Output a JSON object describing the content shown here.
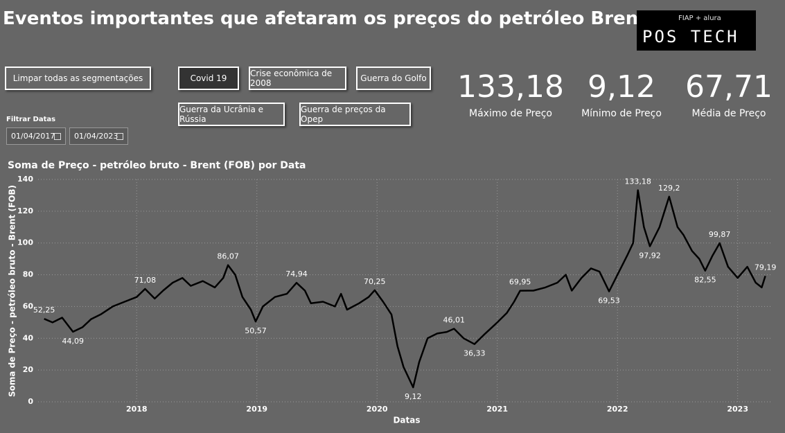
{
  "header": {
    "title": "Eventos importantes que afetaram os preços do petróleo Brent",
    "logo_top": "FIAP + alura",
    "logo_main": "POS TECH"
  },
  "slicers": {
    "clear": "Limpar todas as segmentações",
    "buttons": [
      "Covid 19",
      "Crise econômica de 2008",
      "Guerra do Golfo",
      "Guerra da Ucrânia e Rússia",
      "Guerra de preços da Opep"
    ],
    "date_label": "Filtrar Datas",
    "date_start": "01/04/2017",
    "date_end": "01/04/2023"
  },
  "kpis": [
    {
      "value": "133,18",
      "label": "Máximo de Preço"
    },
    {
      "value": "9,12",
      "label": "Mínimo de Preço"
    },
    {
      "value": "67,71",
      "label": "Média de Preço"
    }
  ],
  "chart_data": {
    "type": "line",
    "title": "Soma de Preço - petróleo bruto - Brent (FOB) por Data",
    "x_label": "Datas",
    "y_label": "Soma de Preço - petróleo bruto - Brent (FOB)",
    "x": [
      2017.23,
      2017.3,
      2017.38,
      2017.47,
      2017.55,
      2017.62,
      2017.7,
      2017.8,
      2017.9,
      2018.0,
      2018.07,
      2018.15,
      2018.22,
      2018.3,
      2018.38,
      2018.45,
      2018.55,
      2018.65,
      2018.72,
      2018.76,
      2018.82,
      2018.88,
      2018.95,
      2018.99,
      2019.05,
      2019.15,
      2019.25,
      2019.33,
      2019.4,
      2019.45,
      2019.55,
      2019.65,
      2019.7,
      2019.75,
      2019.85,
      2019.93,
      2019.98,
      2020.05,
      2020.12,
      2020.17,
      2020.22,
      2020.3,
      2020.35,
      2020.42,
      2020.5,
      2020.58,
      2020.64,
      2020.72,
      2020.81,
      2020.9,
      2021.0,
      2021.08,
      2021.14,
      2021.19,
      2021.3,
      2021.4,
      2021.5,
      2021.57,
      2021.62,
      2021.7,
      2021.78,
      2021.85,
      2021.93,
      2022.0,
      2022.08,
      2022.13,
      2022.17,
      2022.22,
      2022.27,
      2022.35,
      2022.43,
      2022.5,
      2022.55,
      2022.62,
      2022.68,
      2022.73,
      2022.79,
      2022.85,
      2022.92,
      2023.0,
      2023.08,
      2023.15,
      2023.2,
      2023.23
    ],
    "series": [
      {
        "name": "Preço",
        "color": "#000000",
        "values": [
          52.25,
          50,
          53,
          44.09,
          47,
          52,
          55,
          60,
          63,
          66,
          71.08,
          65,
          70,
          75,
          78,
          73,
          76,
          72,
          78,
          86.07,
          80,
          66,
          58,
          50.57,
          60,
          66,
          68,
          74.94,
          70,
          62,
          63,
          60,
          68,
          58,
          62,
          66,
          70.25,
          63,
          55,
          35,
          22,
          9.12,
          25,
          40,
          43,
          44,
          46.01,
          40,
          36.33,
          43,
          50,
          56,
          63,
          69.95,
          70,
          72,
          75,
          80,
          70,
          78,
          84,
          82,
          69.53,
          80,
          92,
          100,
          133.18,
          110,
          97.92,
          110,
          129.2,
          110,
          105,
          95,
          90,
          82.55,
          92,
          99.87,
          85,
          78,
          85,
          75,
          72,
          79.19
        ],
        "value_labels": [
          "52,25",
          null,
          null,
          "44,09",
          null,
          null,
          null,
          null,
          null,
          null,
          "71,08",
          null,
          null,
          null,
          null,
          null,
          null,
          null,
          null,
          "86,07",
          null,
          null,
          null,
          "50,57",
          null,
          null,
          null,
          "74,94",
          null,
          null,
          null,
          null,
          null,
          null,
          null,
          null,
          "70,25",
          null,
          null,
          null,
          null,
          "9,12",
          null,
          null,
          null,
          null,
          "46,01",
          null,
          "36,33",
          null,
          null,
          null,
          null,
          "69,95",
          null,
          null,
          null,
          null,
          null,
          null,
          null,
          null,
          "69,53",
          null,
          null,
          null,
          "133,18",
          null,
          "97,92",
          null,
          "129,2",
          null,
          null,
          null,
          null,
          "82,55",
          null,
          "99,87",
          null,
          null,
          null,
          null,
          null,
          "79,19"
        ]
      }
    ],
    "xlim": [
      2017.18,
      2023.29
    ],
    "xticks": [
      2018,
      2019,
      2020,
      2021,
      2022,
      2023
    ],
    "ylim": [
      0,
      140
    ],
    "yticks": [
      0,
      20,
      40,
      60,
      80,
      100,
      120,
      140
    ],
    "grid": true
  }
}
